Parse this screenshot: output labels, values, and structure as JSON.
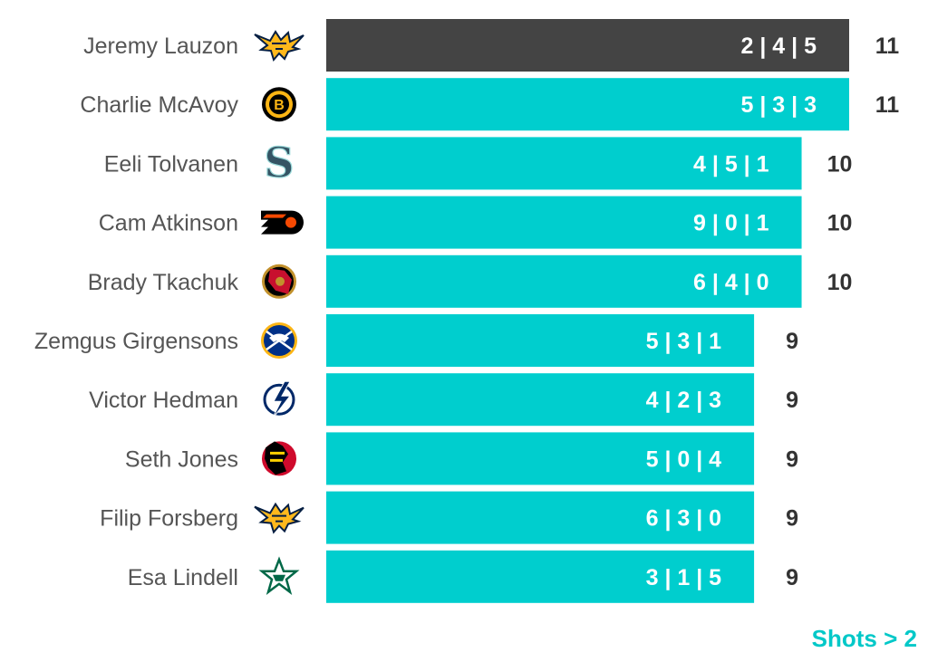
{
  "chart_data": {
    "type": "bar",
    "orientation": "horizontal",
    "categories": [
      "Jeremy Lauzon",
      "Charlie McAvoy",
      "Eeli Tolvanen",
      "Cam Atkinson",
      "Brady Tkachuk",
      "Zemgus Girgensons",
      "Victor Hedman",
      "Seth Jones",
      "Filip Forsberg",
      "Esa Lindell"
    ],
    "values": [
      11,
      11,
      10,
      10,
      10,
      9,
      9,
      9,
      9,
      9
    ],
    "bar_labels": [
      "2 | 4 | 5",
      "5 | 3 | 3",
      "4 | 5 | 1",
      "9 | 0 | 1",
      "6 | 4 | 0",
      "5 | 3 | 1",
      "4 | 2 | 3",
      "5 | 0 | 4",
      "6 | 3 | 0",
      "3 | 1 | 5"
    ],
    "team_icons": [
      "predators-logo-icon",
      "bruins-logo-icon",
      "kraken-logo-icon",
      "flyers-logo-icon",
      "senators-logo-icon",
      "sabres-logo-icon",
      "lightning-logo-icon",
      "blackhawks-logo-icon",
      "predators-logo-icon",
      "stars-logo-icon"
    ],
    "highlight_index": 0,
    "colors": {
      "bar": "#00cece",
      "highlight": "#444444"
    },
    "xlim": [
      0,
      11
    ],
    "title": "",
    "xlabel": "",
    "ylabel": "",
    "grid": false
  },
  "footnote": "Shots > 2"
}
